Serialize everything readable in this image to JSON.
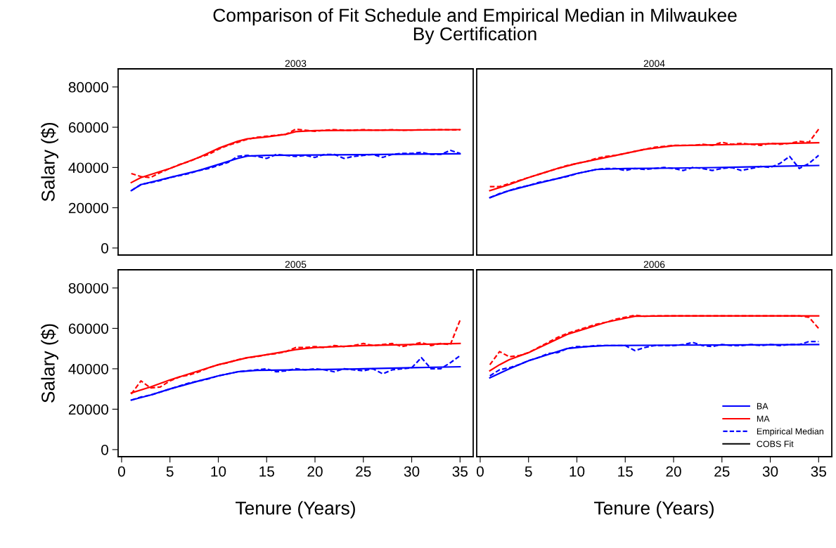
{
  "chart_data": [
    {
      "type": "line",
      "title": "Comparison of Fit Schedule and Empirical Median in Milwaukee\nBy Certification",
      "subtitle": "2003",
      "ylabel": "Salary ($)",
      "xlim": [
        -0.36,
        36.36
      ],
      "ylim": [
        -3500,
        89000
      ],
      "xticks": [
        0,
        5,
        10,
        15,
        20,
        25,
        30,
        35
      ],
      "yticks": [
        0,
        20000,
        40000,
        60000,
        80000
      ],
      "tick_labels": "y",
      "grid": false,
      "legend": false,
      "x": [
        1,
        2,
        3,
        4,
        5,
        6,
        7,
        8,
        9,
        10,
        11,
        12,
        13,
        14,
        15,
        16,
        17,
        18,
        19,
        20,
        21,
        22,
        23,
        24,
        25,
        26,
        27,
        28,
        29,
        30,
        31,
        32,
        33,
        34,
        35
      ],
      "series": [
        {
          "color": "#0000ff",
          "line_style": "dashed",
          "values": [
            28500,
            31500,
            32500,
            33500,
            35000,
            36000,
            37000,
            38500,
            39500,
            41000,
            42500,
            45500,
            46000,
            45500,
            44500,
            46500,
            46000,
            45500,
            46000,
            45000,
            46500,
            46500,
            44500,
            45500,
            46000,
            46500,
            45000,
            46500,
            47000,
            47000,
            47500,
            46500,
            46500,
            48500,
            47000
          ]
        },
        {
          "color": "#ff0000",
          "line_style": "dashed",
          "values": [
            37000,
            35500,
            35000,
            37500,
            39500,
            41500,
            43000,
            45000,
            46500,
            49000,
            51000,
            52500,
            54000,
            55000,
            55500,
            56000,
            56500,
            59000,
            58500,
            58000,
            58500,
            58800,
            58500,
            58500,
            58800,
            58600,
            58600,
            58800,
            58500,
            58600,
            58700,
            58700,
            58800,
            58700,
            58700
          ]
        },
        {
          "color": "#0000ff",
          "line_style": "solid",
          "x": [
            1,
            2,
            5,
            8,
            10,
            12,
            13,
            15,
            20,
            25,
            30,
            35
          ],
          "values": [
            28500,
            31500,
            35000,
            38500,
            41500,
            44500,
            45700,
            46000,
            46200,
            46400,
            46600,
            46800
          ]
        },
        {
          "color": "#ff0000",
          "line_style": "solid",
          "x": [
            1,
            2,
            5,
            8,
            10,
            12,
            13,
            15,
            17,
            18,
            20,
            25,
            30,
            35
          ],
          "values": [
            32500,
            35000,
            39500,
            45000,
            49500,
            53000,
            54200,
            55200,
            56500,
            57800,
            58300,
            58500,
            58600,
            58800
          ]
        }
      ]
    },
    {
      "type": "line",
      "subtitle": "2004",
      "xlim": [
        -0.36,
        36.36
      ],
      "ylim": [
        -3500,
        89000
      ],
      "xticks": [
        0,
        5,
        10,
        15,
        20,
        25,
        30,
        35
      ],
      "yticks": [
        0,
        20000,
        40000,
        60000,
        80000
      ],
      "tick_labels": false,
      "grid": false,
      "legend": false,
      "x": [
        1,
        2,
        3,
        4,
        5,
        6,
        7,
        8,
        9,
        10,
        11,
        12,
        13,
        14,
        15,
        16,
        17,
        18,
        19,
        20,
        21,
        22,
        23,
        24,
        25,
        26,
        27,
        28,
        29,
        30,
        31,
        32,
        33,
        34,
        35
      ],
      "series": [
        {
          "color": "#0000ff",
          "line_style": "dashed",
          "values": [
            25000,
            27000,
            28500,
            30000,
            31000,
            32500,
            33500,
            34500,
            35500,
            37000,
            38000,
            39000,
            39500,
            39500,
            38500,
            39500,
            39000,
            39500,
            40000,
            39500,
            38500,
            40000,
            39500,
            38500,
            39500,
            40000,
            38500,
            39500,
            40500,
            40000,
            42000,
            45500,
            39500,
            42000,
            46000
          ]
        },
        {
          "color": "#ff0000",
          "line_style": "dashed",
          "values": [
            30500,
            30500,
            32000,
            33500,
            35000,
            36500,
            38000,
            39500,
            41000,
            42000,
            43000,
            44500,
            45500,
            46000,
            47000,
            48000,
            49000,
            50000,
            50500,
            51000,
            51000,
            51000,
            51500,
            51000,
            52500,
            51500,
            52000,
            51500,
            51000,
            52000,
            51500,
            52000,
            53000,
            52500,
            59000
          ]
        },
        {
          "color": "#0000ff",
          "line_style": "solid",
          "x": [
            1,
            3,
            5,
            8,
            10,
            12,
            15,
            20,
            25,
            30,
            35
          ],
          "values": [
            25000,
            28500,
            31000,
            34500,
            37000,
            39000,
            39500,
            39700,
            40000,
            40500,
            41000
          ]
        },
        {
          "color": "#ff0000",
          "line_style": "solid",
          "x": [
            1,
            3,
            5,
            8,
            10,
            13,
            15,
            17,
            20,
            25,
            30,
            35
          ],
          "values": [
            28500,
            31500,
            35000,
            39500,
            42000,
            45000,
            47000,
            49000,
            50800,
            51300,
            51800,
            52300
          ]
        }
      ]
    },
    {
      "type": "line",
      "subtitle": "2005",
      "xlabel": "Tenure (Years)",
      "ylabel": "Salary ($)",
      "xlim": [
        -0.36,
        36.36
      ],
      "ylim": [
        -3500,
        89000
      ],
      "xticks": [
        0,
        5,
        10,
        15,
        20,
        25,
        30,
        35
      ],
      "yticks": [
        0,
        20000,
        40000,
        60000,
        80000
      ],
      "grid": false,
      "legend": false,
      "x": [
        1,
        2,
        3,
        4,
        5,
        6,
        7,
        8,
        9,
        10,
        11,
        12,
        13,
        14,
        15,
        16,
        17,
        18,
        19,
        20,
        21,
        22,
        23,
        24,
        25,
        26,
        27,
        28,
        29,
        30,
        31,
        32,
        33,
        34,
        35
      ],
      "series": [
        {
          "color": "#0000ff",
          "line_style": "dashed",
          "values": [
            24500,
            26000,
            27000,
            28500,
            30000,
            31500,
            33000,
            34000,
            35000,
            36500,
            37500,
            38500,
            39000,
            39500,
            40000,
            38500,
            39000,
            40000,
            39500,
            40000,
            39500,
            38500,
            40000,
            39500,
            39000,
            40000,
            37500,
            39500,
            40000,
            40500,
            45500,
            40000,
            40000,
            43000,
            46500
          ]
        },
        {
          "color": "#ff0000",
          "line_style": "dashed",
          "values": [
            27500,
            34000,
            30500,
            31000,
            34000,
            36000,
            37000,
            38500,
            40500,
            42000,
            43000,
            44500,
            45500,
            46000,
            47000,
            47500,
            48500,
            50500,
            50500,
            51000,
            50500,
            51500,
            51000,
            51500,
            52500,
            51500,
            52000,
            52500,
            51000,
            52000,
            53000,
            51500,
            52500,
            52000,
            64000
          ]
        },
        {
          "color": "#0000ff",
          "line_style": "solid",
          "x": [
            1,
            3,
            5,
            8,
            10,
            12,
            14,
            20,
            25,
            30,
            35
          ],
          "values": [
            24500,
            27000,
            30000,
            34000,
            36500,
            38500,
            39200,
            39600,
            40000,
            40500,
            41000
          ]
        },
        {
          "color": "#ff0000",
          "line_style": "solid",
          "x": [
            1,
            3,
            5,
            8,
            10,
            13,
            15,
            18,
            20,
            25,
            30,
            35
          ],
          "values": [
            28000,
            31000,
            34500,
            39000,
            42000,
            45500,
            47000,
            49500,
            50500,
            51500,
            52000,
            52500
          ]
        }
      ]
    },
    {
      "type": "line",
      "subtitle": "2006",
      "xlabel": "Tenure (Years)",
      "xlim": [
        -0.36,
        36.36
      ],
      "ylim": [
        -3500,
        89000
      ],
      "xticks": [
        0,
        5,
        10,
        15,
        20,
        25,
        30,
        35
      ],
      "yticks": [
        0,
        20000,
        40000,
        60000,
        80000
      ],
      "tick_labels": "x",
      "grid": false,
      "legend": "lower right",
      "annotations": [
        "COBS Fit"
      ],
      "x": [
        1,
        2,
        3,
        4,
        5,
        6,
        7,
        8,
        9,
        10,
        11,
        12,
        13,
        14,
        15,
        16,
        17,
        18,
        19,
        20,
        21,
        22,
        23,
        24,
        25,
        26,
        27,
        28,
        29,
        30,
        31,
        32,
        33,
        34,
        35
      ],
      "series": [
        {
          "name": "BA",
          "color": "#0000ff",
          "line_style": "solid",
          "x": [
            1,
            3,
            5,
            7,
            9,
            11,
            13,
            20,
            35
          ],
          "values": [
            35500,
            40000,
            44000,
            47000,
            50000,
            51000,
            51500,
            51700,
            52000
          ]
        },
        {
          "name": "MA",
          "color": "#ff0000",
          "line_style": "solid",
          "x": [
            1,
            2,
            3,
            5,
            7,
            9,
            11,
            13,
            15,
            16,
            20,
            35
          ],
          "values": [
            39000,
            42000,
            44500,
            48000,
            52500,
            57000,
            60000,
            63000,
            65000,
            66000,
            66200,
            66200
          ]
        },
        {
          "name": "Empirical Median",
          "color": "#0000ff",
          "line_style": "dashed",
          "values": [
            36500,
            39500,
            40500,
            42000,
            44000,
            45500,
            47500,
            48000,
            50000,
            51000,
            51000,
            51500,
            51500,
            51500,
            51500,
            49000,
            50500,
            51500,
            51500,
            51500,
            52000,
            53000,
            51500,
            51000,
            52000,
            51500,
            51500,
            52000,
            51500,
            52000,
            51500,
            52000,
            52000,
            53500,
            53500
          ]
        },
        {
          "color": "#ff0000",
          "line_style": "dashed",
          "values": [
            42000,
            48500,
            46000,
            46500,
            48000,
            50500,
            53000,
            55500,
            57500,
            59000,
            60500,
            62000,
            63000,
            64500,
            65500,
            66500,
            66000,
            66200,
            66200,
            66200,
            66200,
            66200,
            66200,
            66200,
            66200,
            66200,
            66200,
            66200,
            66200,
            66200,
            66200,
            66200,
            66200,
            65500,
            60000
          ]
        }
      ]
    }
  ]
}
